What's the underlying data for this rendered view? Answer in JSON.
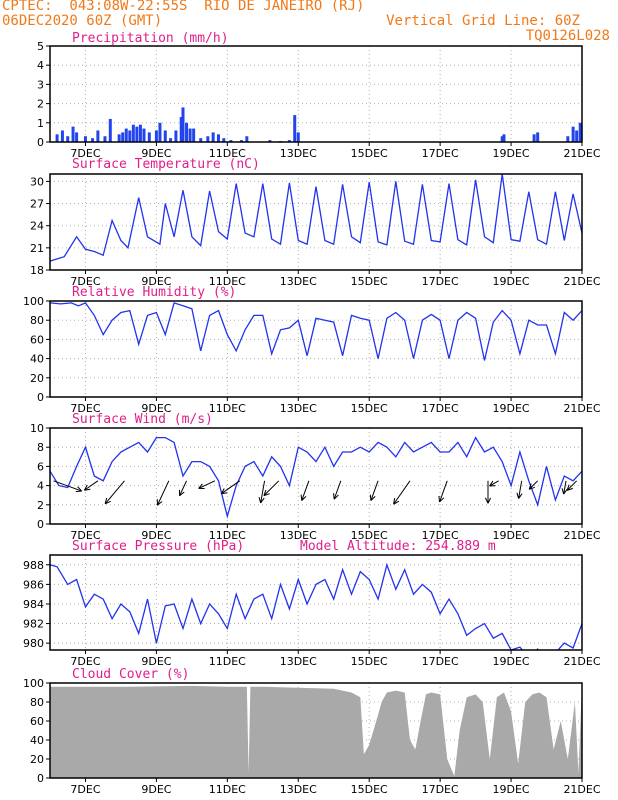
{
  "header": {
    "line1_left": "CPTEC:  043:08W-22:55S  RIO DE JANEIRO (RJ)",
    "line2_left": "06DEC2020 60Z (GMT)",
    "line2_right": "Vertical Grid Line: 60Z",
    "line3_right": "TQ0126L028"
  },
  "colors": {
    "header": "#f07a1a",
    "title": "#e01e8c",
    "line": "#2233ee",
    "bar": "#2244ee",
    "cloud": "#a9a9a9",
    "grid": "#b0b0b0"
  },
  "x_axis": {
    "ticks": [
      "7DEC",
      "9DEC",
      "11DEC",
      "13DEC",
      "15DEC",
      "17DEC",
      "19DEC",
      "21DEC"
    ],
    "range_days": [
      6.0,
      21.0
    ]
  },
  "chart_data": [
    {
      "type": "bar",
      "title": "Precipitation (mm/h)",
      "ylim": [
        0,
        5
      ],
      "yticks": [
        "0",
        "1",
        "2",
        "3",
        "4",
        "5"
      ],
      "x": [
        6.2,
        6.35,
        6.5,
        6.65,
        6.75,
        7.0,
        7.2,
        7.35,
        7.55,
        7.7,
        7.95,
        8.05,
        8.15,
        8.25,
        8.35,
        8.45,
        8.55,
        8.65,
        8.8,
        9.0,
        9.1,
        9.25,
        9.4,
        9.55,
        9.7,
        9.75,
        9.85,
        9.95,
        10.05,
        10.25,
        10.45,
        10.6,
        10.75,
        10.9,
        11.1,
        11.4,
        11.55,
        12.2,
        12.5,
        12.75,
        12.9,
        13.0,
        18.75,
        18.8,
        19.65,
        19.75,
        20.6,
        20.75,
        20.85,
        20.95
      ],
      "values": [
        0.4,
        0.6,
        0.3,
        0.8,
        0.5,
        0.3,
        0.2,
        0.6,
        0.3,
        1.2,
        0.4,
        0.5,
        0.7,
        0.6,
        0.9,
        0.8,
        0.9,
        0.7,
        0.5,
        0.6,
        1.0,
        0.6,
        0.2,
        0.6,
        1.3,
        1.8,
        1.0,
        0.7,
        0.7,
        0.2,
        0.3,
        0.5,
        0.4,
        0.2,
        0.1,
        0.1,
        0.3,
        0.1,
        0.05,
        0.1,
        1.4,
        0.5,
        0.3,
        0.4,
        0.4,
        0.5,
        0.3,
        0.8,
        0.6,
        1.0
      ]
    },
    {
      "type": "line",
      "title": "Surface Temperature (nC)",
      "ylim": [
        18,
        31
      ],
      "yticks": [
        "18",
        "21",
        "24",
        "27",
        "30"
      ],
      "x": [
        6.0,
        6.4,
        6.75,
        7.0,
        7.25,
        7.5,
        7.75,
        8.0,
        8.2,
        8.5,
        8.75,
        9.1,
        9.25,
        9.5,
        9.75,
        10.0,
        10.25,
        10.5,
        10.75,
        11.0,
        11.25,
        11.5,
        11.75,
        12.0,
        12.25,
        12.5,
        12.75,
        13.0,
        13.25,
        13.5,
        13.75,
        14.0,
        14.25,
        14.5,
        14.75,
        15.0,
        15.25,
        15.5,
        15.75,
        16.0,
        16.25,
        16.5,
        16.75,
        17.0,
        17.25,
        17.5,
        17.75,
        18.0,
        18.25,
        18.5,
        18.75,
        19.0,
        19.25,
        19.5,
        19.75,
        20.0,
        20.25,
        20.5,
        20.75,
        21.0
      ],
      "values": [
        19.2,
        19.8,
        22.5,
        20.8,
        20.5,
        20.0,
        24.7,
        22.0,
        21.0,
        27.8,
        22.5,
        21.5,
        27.0,
        22.5,
        28.8,
        22.5,
        21.3,
        28.7,
        23.2,
        22.2,
        29.7,
        23.0,
        22.5,
        29.7,
        22.2,
        21.5,
        29.8,
        22.0,
        21.5,
        29.3,
        22.0,
        21.5,
        29.6,
        22.5,
        21.7,
        29.9,
        21.8,
        21.4,
        30.0,
        21.9,
        21.5,
        29.6,
        22.0,
        21.8,
        29.7,
        22.1,
        21.4,
        30.2,
        22.5,
        21.7,
        31.0,
        22.1,
        21.9,
        28.6,
        22.1,
        21.5,
        28.6,
        22.0,
        28.3,
        23.0
      ]
    },
    {
      "type": "line",
      "title": "Relative Humidity (%)",
      "ylim": [
        0,
        100
      ],
      "yticks": [
        "0",
        "20",
        "40",
        "60",
        "80",
        "100"
      ],
      "x": [
        6.0,
        6.3,
        6.6,
        6.8,
        7.0,
        7.25,
        7.5,
        7.75,
        8.0,
        8.25,
        8.5,
        8.75,
        9.0,
        9.25,
        9.5,
        9.75,
        10.0,
        10.25,
        10.5,
        10.75,
        11.0,
        11.25,
        11.5,
        11.75,
        12.0,
        12.25,
        12.5,
        12.75,
        13.0,
        13.25,
        13.5,
        13.75,
        14.0,
        14.25,
        14.5,
        14.75,
        15.0,
        15.25,
        15.5,
        15.75,
        16.0,
        16.25,
        16.5,
        16.75,
        17.0,
        17.25,
        17.5,
        17.75,
        18.0,
        18.25,
        18.5,
        18.75,
        19.0,
        19.25,
        19.5,
        19.75,
        20.0,
        20.25,
        20.5,
        20.75,
        21.0
      ],
      "values": [
        98,
        97,
        98,
        95,
        98,
        85,
        65,
        80,
        88,
        90,
        55,
        85,
        88,
        65,
        98,
        95,
        92,
        48,
        85,
        90,
        65,
        48,
        70,
        85,
        85,
        45,
        70,
        72,
        80,
        43,
        82,
        80,
        78,
        43,
        85,
        82,
        80,
        40,
        82,
        88,
        80,
        40,
        80,
        86,
        80,
        40,
        80,
        88,
        82,
        38,
        78,
        90,
        80,
        45,
        80,
        75,
        75,
        45,
        88,
        80,
        90
      ]
    },
    {
      "type": "line",
      "title": "Surface Wind (m/s)",
      "ylim": [
        0,
        10
      ],
      "yticks": [
        "0",
        "2",
        "4",
        "6",
        "8",
        "10"
      ],
      "x": [
        6.0,
        6.25,
        6.5,
        6.75,
        7.0,
        7.25,
        7.5,
        7.75,
        8.0,
        8.25,
        8.5,
        8.75,
        9.0,
        9.25,
        9.5,
        9.75,
        10.0,
        10.25,
        10.5,
        10.75,
        11.0,
        11.25,
        11.5,
        11.75,
        12.0,
        12.25,
        12.5,
        12.75,
        13.0,
        13.25,
        13.5,
        13.75,
        14.0,
        14.25,
        14.5,
        14.75,
        15.0,
        15.25,
        15.5,
        15.75,
        16.0,
        16.25,
        16.5,
        16.75,
        17.0,
        17.25,
        17.5,
        17.75,
        18.0,
        18.25,
        18.5,
        18.75,
        19.0,
        19.25,
        19.5,
        19.75,
        20.0,
        20.25,
        20.5,
        20.75,
        21.0
      ],
      "values": [
        5.5,
        4.0,
        3.8,
        6.0,
        8.0,
        5.0,
        4.5,
        6.5,
        7.5,
        8.0,
        8.5,
        7.5,
        9.0,
        9.0,
        8.5,
        5.0,
        6.5,
        6.5,
        6.0,
        4.5,
        0.8,
        4.0,
        6.0,
        6.5,
        5.0,
        7.0,
        6.0,
        4.0,
        8.0,
        7.5,
        6.5,
        8.0,
        6.0,
        7.5,
        7.5,
        8.0,
        7.5,
        8.5,
        8.0,
        7.0,
        8.5,
        7.5,
        8.0,
        8.5,
        7.5,
        7.5,
        8.5,
        7.0,
        9.0,
        7.5,
        8.0,
        6.5,
        4.0,
        7.5,
        4.5,
        2.0,
        6.0,
        2.5,
        5.0,
        4.5,
        5.5
      ],
      "arrows": [
        {
          "x": 6.1,
          "dir": 290,
          "len": 1.0
        },
        {
          "x": 7.35,
          "dir": 55,
          "len": 0.55
        },
        {
          "x": 8.1,
          "dir": 40,
          "len": 1.0
        },
        {
          "x": 9.35,
          "dir": 25,
          "len": 0.9
        },
        {
          "x": 9.85,
          "dir": 25,
          "len": 0.55
        },
        {
          "x": 10.65,
          "dir": 65,
          "len": 0.6
        },
        {
          "x": 11.35,
          "dir": 55,
          "len": 0.75
        },
        {
          "x": 12.05,
          "dir": 10,
          "len": 0.75
        },
        {
          "x": 12.45,
          "dir": 45,
          "len": 0.7
        },
        {
          "x": 13.3,
          "dir": 20,
          "len": 0.7
        },
        {
          "x": 14.2,
          "dir": 20,
          "len": 0.65
        },
        {
          "x": 15.25,
          "dir": 20,
          "len": 0.7
        },
        {
          "x": 16.15,
          "dir": 35,
          "len": 0.95
        },
        {
          "x": 17.2,
          "dir": 20,
          "len": 0.75
        },
        {
          "x": 18.35,
          "dir": 0,
          "len": 0.75
        },
        {
          "x": 18.65,
          "dir": 60,
          "len": 0.35
        },
        {
          "x": 19.3,
          "dir": 10,
          "len": 0.6
        },
        {
          "x": 19.75,
          "dir": 45,
          "len": 0.4
        },
        {
          "x": 20.55,
          "dir": 10,
          "len": 0.45
        },
        {
          "x": 20.85,
          "dir": 45,
          "len": 0.45
        }
      ]
    },
    {
      "type": "line",
      "title": "Surface Pressure (hPa)",
      "subtitle": "Model Altitude: 254.889 m",
      "ylim": [
        979.3,
        989.0
      ],
      "yticks": [
        "980",
        "982",
        "984",
        "986",
        "988"
      ],
      "x": [
        6.0,
        6.2,
        6.5,
        6.75,
        7.0,
        7.25,
        7.5,
        7.75,
        8.0,
        8.25,
        8.5,
        8.75,
        9.0,
        9.25,
        9.5,
        9.75,
        10.0,
        10.25,
        10.5,
        10.75,
        11.0,
        11.25,
        11.5,
        11.75,
        12.0,
        12.25,
        12.5,
        12.75,
        13.0,
        13.25,
        13.5,
        13.75,
        14.0,
        14.25,
        14.5,
        14.75,
        15.0,
        15.25,
        15.5,
        15.75,
        16.0,
        16.25,
        16.5,
        16.75,
        17.0,
        17.25,
        17.5,
        17.75,
        18.0,
        18.25,
        18.5,
        18.75,
        19.0,
        19.25,
        19.5,
        19.75,
        20.0,
        20.25,
        20.5,
        20.75,
        21.0
      ],
      "values": [
        988.0,
        987.8,
        986.0,
        986.5,
        983.7,
        985.0,
        984.5,
        982.5,
        984.0,
        983.2,
        981.0,
        984.5,
        980.0,
        983.8,
        984.0,
        981.5,
        984.5,
        982.0,
        984.0,
        983.0,
        981.5,
        985.0,
        982.5,
        984.5,
        985.0,
        982.5,
        986.0,
        983.5,
        986.5,
        984.0,
        986.0,
        986.5,
        984.5,
        987.5,
        985.0,
        987.3,
        986.5,
        984.5,
        988.0,
        985.5,
        987.5,
        985.0,
        986.0,
        985.2,
        983.0,
        984.5,
        983.0,
        980.8,
        981.5,
        982.0,
        980.5,
        981.0,
        979.3,
        979.6,
        978.5,
        979.4,
        978.0,
        979.0,
        980.0,
        979.5,
        982.0
      ]
    },
    {
      "type": "area",
      "title": "Cloud Cover (%)",
      "ylim": [
        0,
        100
      ],
      "yticks": [
        "0",
        "20",
        "40",
        "60",
        "80",
        "100"
      ],
      "x": [
        6.0,
        8.0,
        10.0,
        11.0,
        11.55,
        11.6,
        11.65,
        12.0,
        13.0,
        14.0,
        14.5,
        14.75,
        14.85,
        15.0,
        15.2,
        15.35,
        15.5,
        15.75,
        16.0,
        16.15,
        16.3,
        16.45,
        16.6,
        16.75,
        17.0,
        17.2,
        17.4,
        17.55,
        17.75,
        18.0,
        18.2,
        18.4,
        18.6,
        18.8,
        19.0,
        19.2,
        19.4,
        19.6,
        19.8,
        20.0,
        20.2,
        20.4,
        20.6,
        20.8,
        20.9,
        21.0
      ],
      "values": [
        96,
        96,
        97,
        96,
        96,
        5,
        96,
        96,
        95,
        94,
        90,
        85,
        25,
        35,
        60,
        80,
        90,
        92,
        90,
        40,
        30,
        60,
        88,
        90,
        88,
        20,
        2,
        50,
        85,
        88,
        80,
        20,
        85,
        90,
        70,
        15,
        80,
        88,
        90,
        85,
        30,
        60,
        20,
        80,
        5,
        100
      ]
    }
  ]
}
